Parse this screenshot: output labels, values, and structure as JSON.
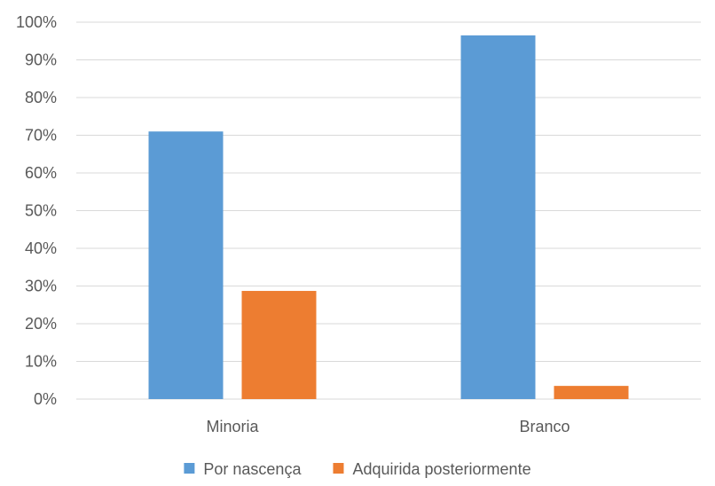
{
  "chart_data": {
    "type": "bar",
    "title": "",
    "xlabel": "",
    "ylabel": "",
    "categories": [
      "Minoria",
      "Branco"
    ],
    "series": [
      {
        "name": "Por nascença",
        "values": [
          71,
          96.5
        ]
      },
      {
        "name": "Adquirida posteriormente",
        "values": [
          28.7,
          3.5
        ]
      }
    ],
    "ylim": [
      0,
      100
    ],
    "y_ticks": [
      0,
      10,
      20,
      30,
      40,
      50,
      60,
      70,
      80,
      90,
      100
    ],
    "y_tick_labels": [
      "0%",
      "10%",
      "20%",
      "30%",
      "40%",
      "50%",
      "60%",
      "70%",
      "80%",
      "90%",
      "100%"
    ],
    "grid": true,
    "legend_position": "bottom"
  },
  "colors": {
    "Por nascença": "#5B9BD5",
    "Adquirida posteriormente": "#ED7D31",
    "gridline": "#D9D9D9",
    "text": "#595959"
  }
}
